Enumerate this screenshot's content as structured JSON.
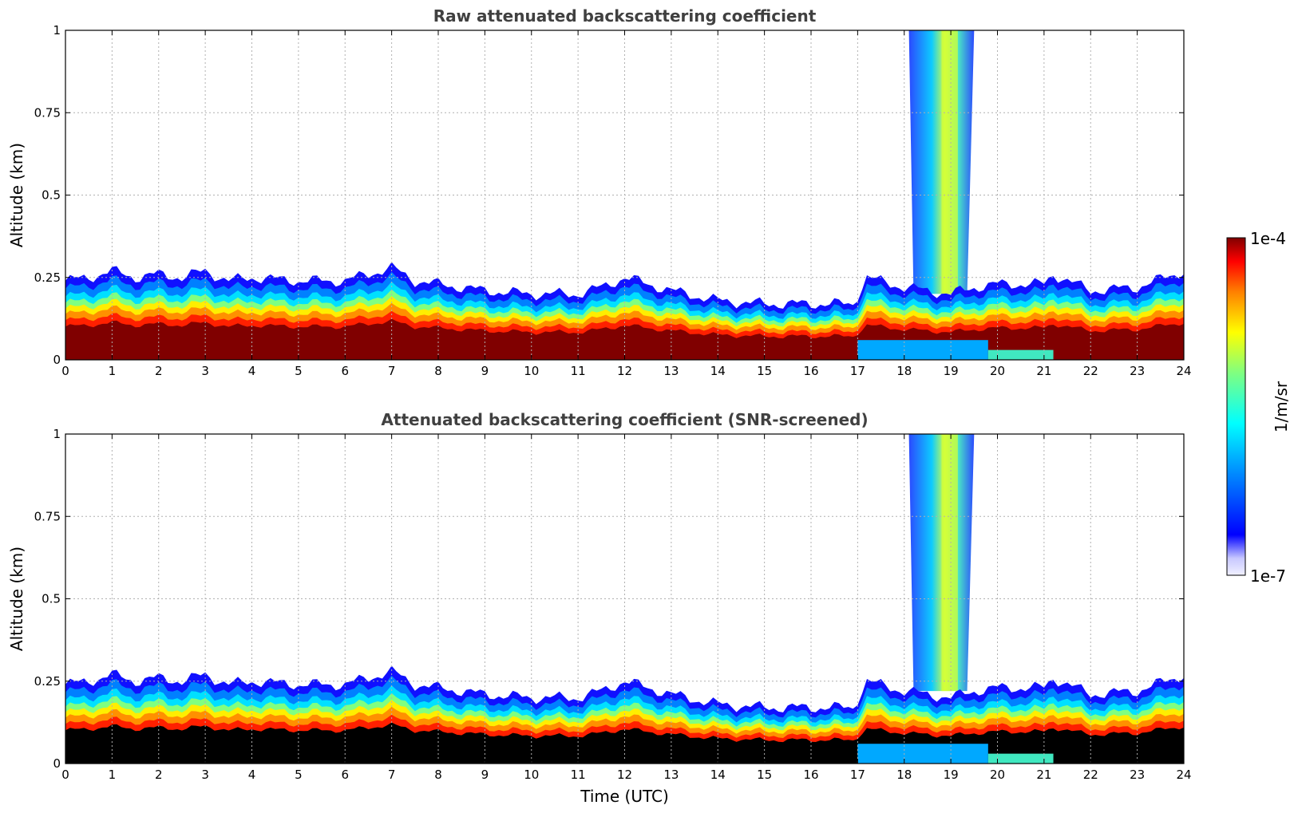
{
  "chart_data": [
    {
      "type": "heatmap",
      "title": "Raw attenuated backscattering coefficient",
      "ylabel": "Altitude (km)",
      "xlim": [
        0,
        24
      ],
      "ylim": [
        0,
        1
      ],
      "x_ticks": [
        "0",
        "1",
        "2",
        "3",
        "4",
        "5",
        "6",
        "7",
        "8",
        "9",
        "10",
        "11",
        "12",
        "13",
        "14",
        "15",
        "16",
        "17",
        "18",
        "19",
        "20",
        "21",
        "22",
        "23",
        "24"
      ],
      "y_ticks": [
        "0",
        "0.25",
        "0.5",
        "0.75",
        "1"
      ],
      "grid": true,
      "screened": false
    },
    {
      "type": "heatmap",
      "title": "Attenuated backscattering coefficient (SNR-screened)",
      "ylabel": "Altitude (km)",
      "xlabel": "Time (UTC)",
      "xlim": [
        0,
        24
      ],
      "ylim": [
        0,
        1
      ],
      "x_ticks": [
        "0",
        "1",
        "2",
        "3",
        "4",
        "5",
        "6",
        "7",
        "8",
        "9",
        "10",
        "11",
        "12",
        "13",
        "14",
        "15",
        "16",
        "17",
        "18",
        "19",
        "20",
        "21",
        "22",
        "23",
        "24"
      ],
      "y_ticks": [
        "0",
        "0.25",
        "0.5",
        "0.75",
        "1"
      ],
      "grid": true,
      "screened": true
    }
  ],
  "colorbar": {
    "label": "1/m/sr",
    "max_label": "1e-4",
    "min_label": "1e-7",
    "scale": "log",
    "colormap": "jet"
  },
  "profile": {
    "hours": [
      0,
      0.5,
      1,
      1.5,
      2,
      2.5,
      3,
      3.5,
      4,
      5,
      6,
      6.5,
      7,
      7.5,
      8,
      9,
      10,
      11,
      11.5,
      12,
      13,
      14,
      15,
      16,
      16.9,
      17.2,
      18,
      19,
      19.5,
      20,
      21,
      21.2,
      22,
      23,
      24
    ],
    "layer_top_km": [
      0.24,
      0.25,
      0.27,
      0.25,
      0.26,
      0.25,
      0.27,
      0.24,
      0.25,
      0.24,
      0.24,
      0.26,
      0.28,
      0.24,
      0.23,
      0.21,
      0.2,
      0.2,
      0.22,
      0.25,
      0.21,
      0.18,
      0.17,
      0.17,
      0.17,
      0.25,
      0.22,
      0.2,
      0.22,
      0.23,
      0.23,
      0.26,
      0.21,
      0.22,
      0.27
    ]
  },
  "plume": {
    "start_hour": 18.1,
    "end_hour": 19.5,
    "core_hour": 18.8
  }
}
